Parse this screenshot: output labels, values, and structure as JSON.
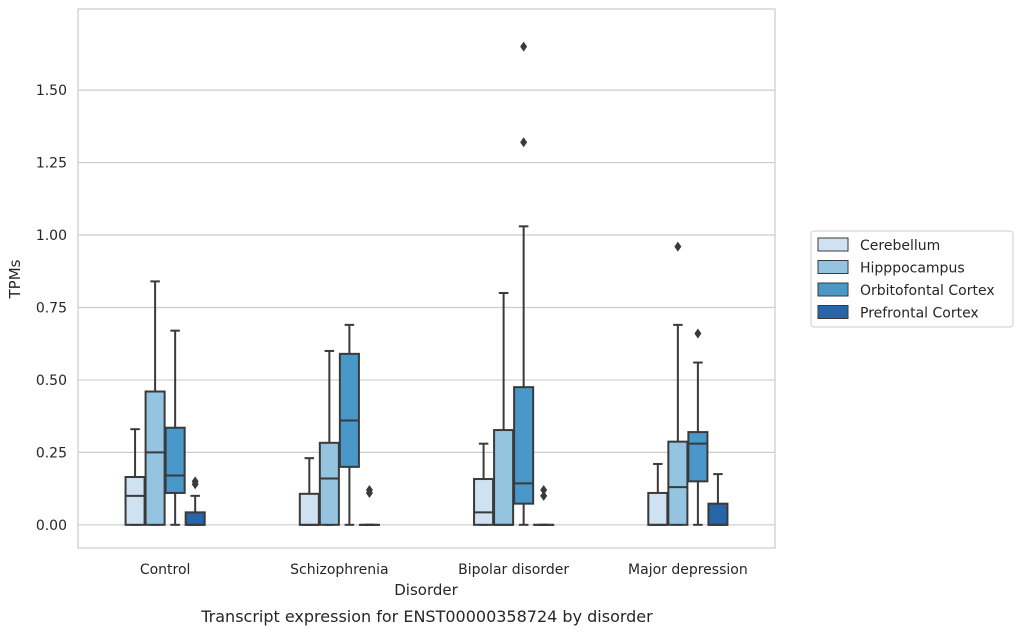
{
  "caption": "Transcript expression for ENST00000358724 by disorder",
  "chart_data": {
    "type": "box",
    "title": "",
    "xlabel": "Disorder",
    "ylabel": "TPMs",
    "ylim": [
      -0.08,
      1.78
    ],
    "yticks": [
      0.0,
      0.25,
      0.5,
      0.75,
      1.0,
      1.25,
      1.5
    ],
    "ytick_labels": [
      "0.00",
      "0.25",
      "0.50",
      "0.75",
      "1.00",
      "1.25",
      "1.50"
    ],
    "grid": true,
    "legend_position": "right",
    "categories": [
      "Control",
      "Schizophrenia",
      "Bipolar disorder",
      "Major depression"
    ],
    "series": [
      {
        "name": "Cerebellum",
        "color": "#d0e1f2",
        "boxes": [
          {
            "whisker_low": 0.0,
            "q1": 0.0,
            "median": 0.1,
            "q3": 0.165,
            "whisker_high": 0.33,
            "outliers": []
          },
          {
            "whisker_low": 0.0,
            "q1": 0.0,
            "median": 0.0,
            "q3": 0.107,
            "whisker_high": 0.23,
            "outliers": []
          },
          {
            "whisker_low": 0.0,
            "q1": 0.0,
            "median": 0.043,
            "q3": 0.158,
            "whisker_high": 0.28,
            "outliers": []
          },
          {
            "whisker_low": 0.0,
            "q1": 0.0,
            "median": 0.0,
            "q3": 0.11,
            "whisker_high": 0.21,
            "outliers": []
          }
        ]
      },
      {
        "name": "Hipppocampus",
        "color": "#94c4df",
        "boxes": [
          {
            "whisker_low": 0.0,
            "q1": 0.0,
            "median": 0.25,
            "q3": 0.46,
            "whisker_high": 0.84,
            "outliers": []
          },
          {
            "whisker_low": 0.0,
            "q1": 0.0,
            "median": 0.16,
            "q3": 0.283,
            "whisker_high": 0.6,
            "outliers": []
          },
          {
            "whisker_low": 0.0,
            "q1": 0.0,
            "median": 0.0,
            "q3": 0.327,
            "whisker_high": 0.8,
            "outliers": []
          },
          {
            "whisker_low": 0.0,
            "q1": 0.0,
            "median": 0.13,
            "q3": 0.287,
            "whisker_high": 0.69,
            "outliers": [
              0.96
            ]
          }
        ]
      },
      {
        "name": "Orbitofontal Cortex",
        "color": "#4a98c9",
        "boxes": [
          {
            "whisker_low": 0.0,
            "q1": 0.11,
            "median": 0.17,
            "q3": 0.335,
            "whisker_high": 0.67,
            "outliers": []
          },
          {
            "whisker_low": 0.0,
            "q1": 0.2,
            "median": 0.36,
            "q3": 0.59,
            "whisker_high": 0.69,
            "outliers": []
          },
          {
            "whisker_low": 0.0,
            "q1": 0.073,
            "median": 0.143,
            "q3": 0.475,
            "whisker_high": 1.03,
            "outliers": [
              1.32,
              1.65
            ]
          },
          {
            "whisker_low": 0.0,
            "q1": 0.15,
            "median": 0.28,
            "q3": 0.32,
            "whisker_high": 0.56,
            "outliers": [
              0.66
            ]
          }
        ]
      },
      {
        "name": "Prefrontal Cortex",
        "color": "#2565a8",
        "boxes": [
          {
            "whisker_low": 0.0,
            "q1": 0.0,
            "median": 0.0,
            "q3": 0.043,
            "whisker_high": 0.1,
            "outliers": [
              0.14,
              0.15
            ]
          },
          {
            "whisker_low": 0.0,
            "q1": 0.0,
            "median": 0.0,
            "q3": 0.0,
            "whisker_high": 0.0,
            "outliers": [
              0.11,
              0.12
            ]
          },
          {
            "whisker_low": 0.0,
            "q1": 0.0,
            "median": 0.0,
            "q3": 0.0,
            "whisker_high": 0.0,
            "outliers": [
              0.1,
              0.12
            ]
          },
          {
            "whisker_low": 0.0,
            "q1": 0.0,
            "median": 0.0,
            "q3": 0.073,
            "whisker_high": 0.175,
            "outliers": []
          }
        ]
      }
    ]
  }
}
